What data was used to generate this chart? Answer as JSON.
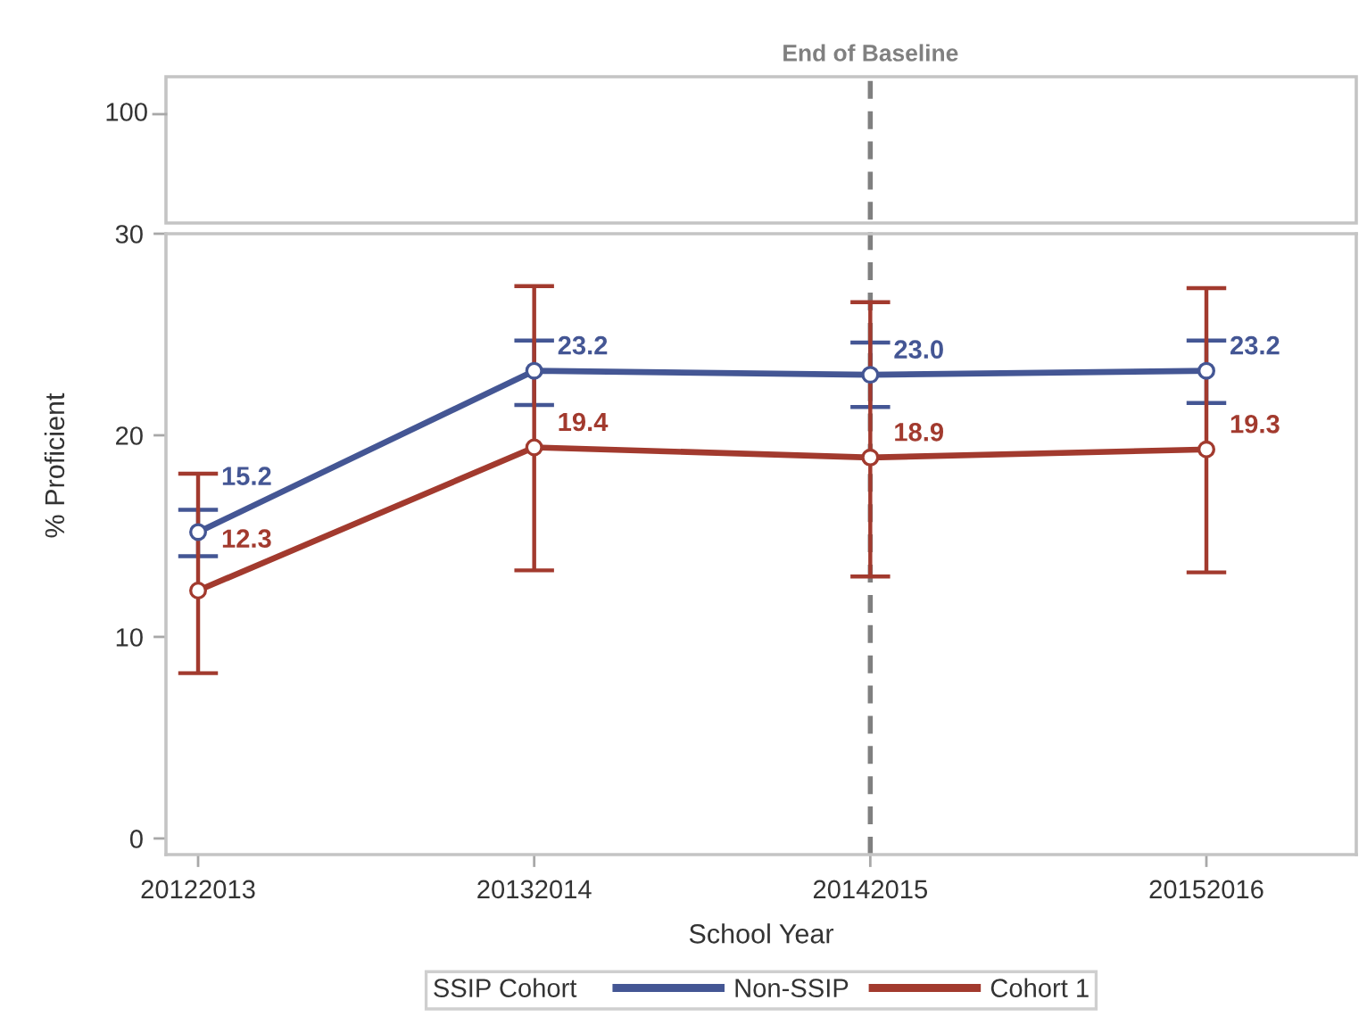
{
  "chart_data": {
    "type": "line",
    "categories": [
      "20122013",
      "20132014",
      "20142015",
      "20152016"
    ],
    "xlabel": "School Year",
    "ylabel": "% Proficient",
    "ylim": [
      -0.8,
      30
    ],
    "yticks": [
      0,
      10,
      20,
      30
    ],
    "marker": "circle",
    "line_style": "solid",
    "legend": "bottom",
    "legend_title": "SSIP Cohort",
    "annotations": [
      "100"
    ],
    "ref_lines": [
      {
        "axis": "x",
        "value": "20142015",
        "label": "End of Baseline",
        "color": "#808080",
        "line_style": "dashed"
      }
    ],
    "series": [
      {
        "name": "Non-SSIP",
        "color": "#445694",
        "values": [
          15.2,
          23.2,
          23.0,
          23.2
        ],
        "errors": [
          [
            14.0,
            16.3
          ],
          [
            21.5,
            24.7
          ],
          [
            21.4,
            24.6
          ],
          [
            21.6,
            24.7
          ]
        ],
        "value_labels": [
          "15.2",
          "23.2",
          "23.0",
          "23.2"
        ]
      },
      {
        "name": "Cohort 1",
        "color": "#a23a2e",
        "values": [
          12.3,
          19.4,
          18.9,
          19.3
        ],
        "errors": [
          [
            8.2,
            18.1
          ],
          [
            13.3,
            27.4
          ],
          [
            13.0,
            26.6
          ],
          [
            13.2,
            27.3
          ]
        ],
        "value_labels": [
          "12.3",
          "19.4",
          "18.9",
          "19.3"
        ]
      }
    ]
  }
}
